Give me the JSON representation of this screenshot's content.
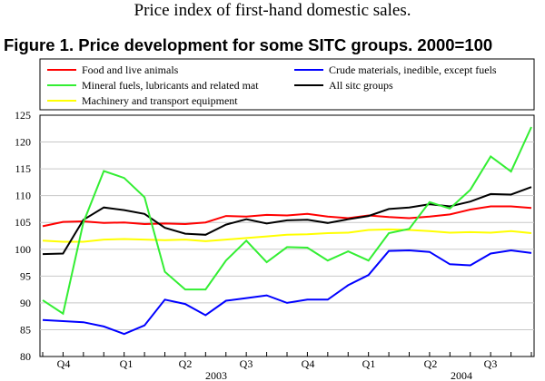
{
  "header": {
    "subtitle": "Price index of first-hand domestic sales.",
    "figure_title": "Figure 1. Price development for some SITC groups. 2000=100"
  },
  "chart_data": {
    "type": "line",
    "title": "Figure 1. Price development for some SITC groups. 2000=100",
    "xlabel": "",
    "ylabel": "",
    "ylim": [
      80,
      125
    ],
    "y_ticks": [
      80,
      85,
      90,
      95,
      100,
      105,
      110,
      115,
      120,
      125
    ],
    "grid": true,
    "legend_position": "top",
    "period_labels": [
      "Q4",
      "Q1",
      "Q2",
      "Q3",
      "Q4",
      "Q1",
      "Q2",
      "Q3"
    ],
    "year_labels": [
      "2003",
      "2004"
    ],
    "colors": {
      "food": "#ff0000",
      "crude": "#0000ff",
      "mineral": "#33ee33",
      "all": "#000000",
      "machinery": "#ffff00"
    },
    "series": [
      {
        "key": "food",
        "name": "Food and live animals",
        "values": [
          104.3,
          105.1,
          105.2,
          104.9,
          105.0,
          104.7,
          104.8,
          104.7,
          105.0,
          106.2,
          106.1,
          106.4,
          106.3,
          106.6,
          106.1,
          105.8,
          106.3,
          106.0,
          105.8,
          106.1,
          106.5,
          107.4,
          108.0,
          108.0,
          107.7
        ]
      },
      {
        "key": "crude",
        "name": "Crude materials, inedible, except fuels",
        "values": [
          86.8,
          86.6,
          86.4,
          85.6,
          84.2,
          85.8,
          90.6,
          89.8,
          87.7,
          90.4,
          90.9,
          91.4,
          90.0,
          90.6,
          90.6,
          93.3,
          95.2,
          99.7,
          99.8,
          99.5,
          97.2,
          97.0,
          99.2,
          99.8,
          99.3
        ]
      },
      {
        "key": "mineral",
        "name": "Mineral fuels, lubricants and related mat",
        "values": [
          90.5,
          88.0,
          105.0,
          114.6,
          113.3,
          109.7,
          95.8,
          92.5,
          92.5,
          97.9,
          101.6,
          97.6,
          100.4,
          100.3,
          97.9,
          99.6,
          97.9,
          103.0,
          103.8,
          108.8,
          107.6,
          111.1,
          117.3,
          114.5,
          122.8
        ]
      },
      {
        "key": "all",
        "name": "All sitc groups",
        "values": [
          99.1,
          99.2,
          105.5,
          107.8,
          107.3,
          106.6,
          104.0,
          102.9,
          102.7,
          104.6,
          105.6,
          104.8,
          105.4,
          105.5,
          104.9,
          105.6,
          106.2,
          107.5,
          107.8,
          108.4,
          108.0,
          108.9,
          110.3,
          110.2,
          111.6
        ]
      },
      {
        "key": "machinery",
        "name": "Machinery and transport equipment",
        "values": [
          101.6,
          101.4,
          101.4,
          101.8,
          101.9,
          101.8,
          101.7,
          101.8,
          101.5,
          101.8,
          102.1,
          102.4,
          102.7,
          102.8,
          103.0,
          103.1,
          103.6,
          103.7,
          103.6,
          103.4,
          103.1,
          103.2,
          103.1,
          103.4,
          103.0
        ]
      }
    ]
  }
}
